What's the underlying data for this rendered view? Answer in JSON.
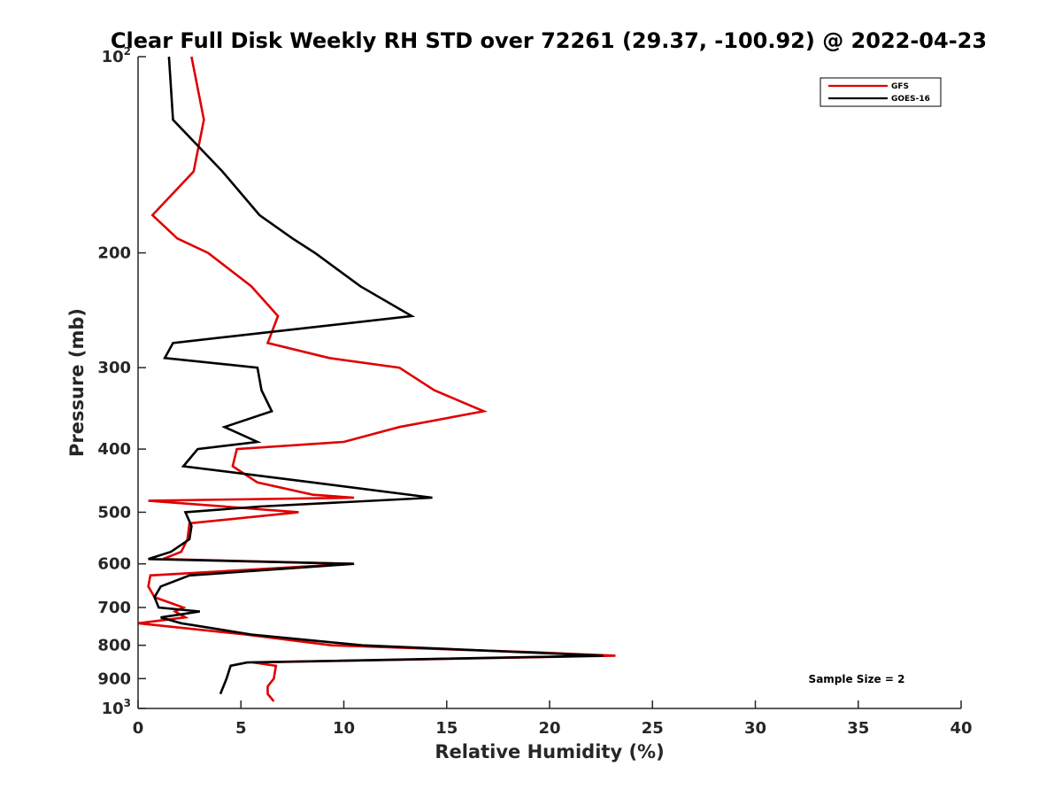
{
  "chart_data": {
    "type": "line",
    "title": "Clear Full Disk Weekly RH STD over 72261 (29.37, -100.92) @ 2022-04-23",
    "xlabel": "Relative Humidity (%)",
    "ylabel": "Pressure (mb)",
    "xlim": [
      0,
      40
    ],
    "ylim": [
      100,
      1000
    ],
    "y_scale": "log",
    "y_reversed": true,
    "grid": false,
    "legend_position": "top-right",
    "x_ticks": [
      0,
      5,
      10,
      15,
      20,
      25,
      30,
      35,
      40
    ],
    "x_tick_labels": [
      "0",
      "5",
      "10",
      "15",
      "20",
      "25",
      "30",
      "35",
      "40"
    ],
    "y_ticks": [
      100,
      200,
      300,
      400,
      500,
      600,
      700,
      800,
      900,
      1000
    ],
    "y_tick_labels": [
      {
        "base": "10",
        "sup": "2"
      },
      {
        "base": "200",
        "sup": ""
      },
      {
        "base": "300",
        "sup": ""
      },
      {
        "base": "400",
        "sup": ""
      },
      {
        "base": "500",
        "sup": ""
      },
      {
        "base": "600",
        "sup": ""
      },
      {
        "base": "700",
        "sup": ""
      },
      {
        "base": "800",
        "sup": ""
      },
      {
        "base": "900",
        "sup": ""
      },
      {
        "base": "10",
        "sup": "3"
      }
    ],
    "annotation": "Sample Size = 2",
    "series": [
      {
        "name": "GFS",
        "color": "#e00000",
        "points": [
          [
            2.6,
            100
          ],
          [
            3.2,
            125
          ],
          [
            2.7,
            150
          ],
          [
            0.7,
            175
          ],
          [
            1.9,
            190
          ],
          [
            3.4,
            200
          ],
          [
            5.5,
            225
          ],
          [
            6.8,
            250
          ],
          [
            6.3,
            275
          ],
          [
            9.3,
            290
          ],
          [
            12.7,
            300
          ],
          [
            14.4,
            325
          ],
          [
            16.8,
            350
          ],
          [
            12.7,
            370
          ],
          [
            10.0,
            390
          ],
          [
            4.8,
            400
          ],
          [
            4.6,
            425
          ],
          [
            5.8,
            450
          ],
          [
            8.5,
            470
          ],
          [
            10.5,
            475
          ],
          [
            0.5,
            480
          ],
          [
            7.8,
            500
          ],
          [
            2.5,
            520
          ],
          [
            2.4,
            550
          ],
          [
            2.1,
            575
          ],
          [
            1.2,
            590
          ],
          [
            10.4,
            600
          ],
          [
            0.6,
            625
          ],
          [
            0.5,
            650
          ],
          [
            0.8,
            675
          ],
          [
            2.2,
            700
          ],
          [
            1.8,
            710
          ],
          [
            2.3,
            725
          ],
          [
            0.0,
            740
          ],
          [
            5.2,
            770
          ],
          [
            9.4,
            800
          ],
          [
            19.3,
            820
          ],
          [
            23.2,
            830
          ],
          [
            5.6,
            850
          ],
          [
            6.7,
            860
          ],
          [
            6.6,
            900
          ],
          [
            6.3,
            925
          ],
          [
            6.3,
            950
          ],
          [
            6.6,
            975
          ]
        ]
      },
      {
        "name": "GOES-16",
        "color": "#000000",
        "points": [
          [
            1.5,
            100
          ],
          [
            1.7,
            125
          ],
          [
            4.1,
            150
          ],
          [
            5.9,
            175
          ],
          [
            7.5,
            190
          ],
          [
            8.6,
            200
          ],
          [
            10.8,
            225
          ],
          [
            13.3,
            250
          ],
          [
            1.7,
            275
          ],
          [
            1.3,
            290
          ],
          [
            5.8,
            300
          ],
          [
            6.0,
            325
          ],
          [
            6.5,
            350
          ],
          [
            4.2,
            370
          ],
          [
            5.8,
            390
          ],
          [
            2.9,
            400
          ],
          [
            2.2,
            425
          ],
          [
            8.5,
            450
          ],
          [
            14.3,
            475
          ],
          [
            5.9,
            490
          ],
          [
            2.3,
            500
          ],
          [
            2.6,
            525
          ],
          [
            2.5,
            550
          ],
          [
            1.6,
            575
          ],
          [
            0.5,
            590
          ],
          [
            10.5,
            600
          ],
          [
            2.5,
            625
          ],
          [
            1.1,
            650
          ],
          [
            0.8,
            675
          ],
          [
            1.0,
            700
          ],
          [
            3.0,
            710
          ],
          [
            1.1,
            725
          ],
          [
            2.1,
            740
          ],
          [
            5.5,
            770
          ],
          [
            10.9,
            800
          ],
          [
            22.6,
            830
          ],
          [
            5.3,
            850
          ],
          [
            4.5,
            860
          ],
          [
            4.3,
            900
          ],
          [
            4.0,
            950
          ]
        ]
      }
    ]
  }
}
